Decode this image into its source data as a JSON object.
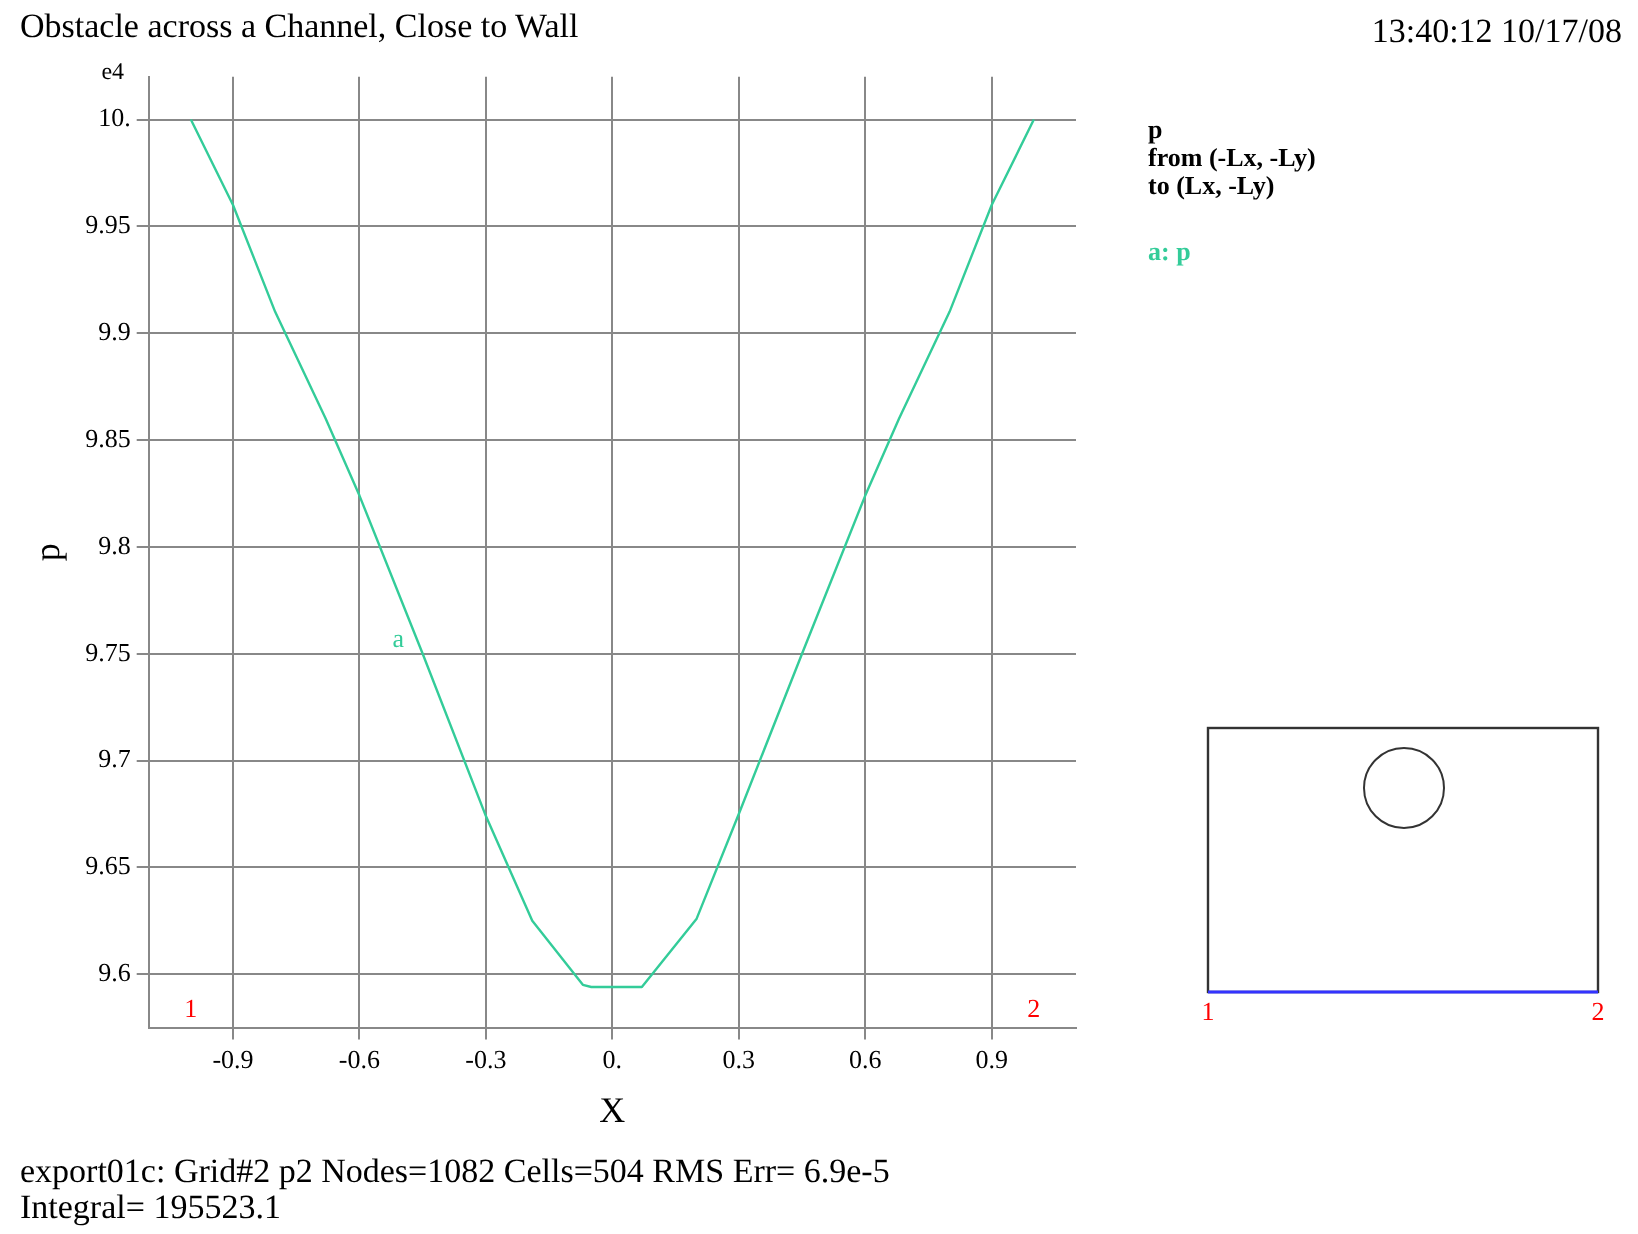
{
  "chart_data": {
    "type": "line",
    "title": "Obstacle across a Channel, Close to Wall",
    "xlabel": "X",
    "ylabel": "p",
    "x": [
      -1.0,
      -0.9,
      -0.8,
      -0.68,
      -0.6,
      -0.45,
      -0.3,
      -0.19,
      -0.07,
      -0.05,
      0.07,
      0.2,
      0.3,
      0.45,
      0.6,
      0.68,
      0.8,
      0.9,
      1.0
    ],
    "series": [
      {
        "name": "a: p",
        "color": "#33cc99",
        "values": [
          10.0,
          9.96,
          9.91,
          9.86,
          9.824,
          9.75,
          9.674,
          9.625,
          9.595,
          9.594,
          9.594,
          9.626,
          9.675,
          9.75,
          9.824,
          9.86,
          9.91,
          9.96,
          10.0
        ]
      }
    ],
    "xlim": [
      -1.1,
      1.1
    ],
    "xticks": [
      -0.9,
      -0.6,
      -0.3,
      {
        "value": 0,
        "label": "0."
      },
      0.3,
      0.6,
      0.9
    ],
    "ylim": [
      9.575,
      10.02
    ],
    "yticks": [
      9.6,
      9.65,
      9.7,
      9.75,
      9.8,
      9.85,
      9.9,
      9.95,
      {
        "value": 10,
        "label": "10."
      }
    ],
    "grid": true,
    "legend": "top right",
    "marker": "none",
    "line_style": "solid",
    "annotations": [
      "e4",
      "13:40:12 10/17/08",
      "p",
      "from (-Lx, -Ly)",
      "to (Lx, -Ly)",
      "export01c:  Grid#2  p2  Nodes=1082 Cells=504 RMS Err= 6.9e-5",
      "Integral=  195523.1",
      {
        "text": "a",
        "x": -0.47,
        "y": 9.756
      },
      "1",
      "2"
    ]
  }
}
